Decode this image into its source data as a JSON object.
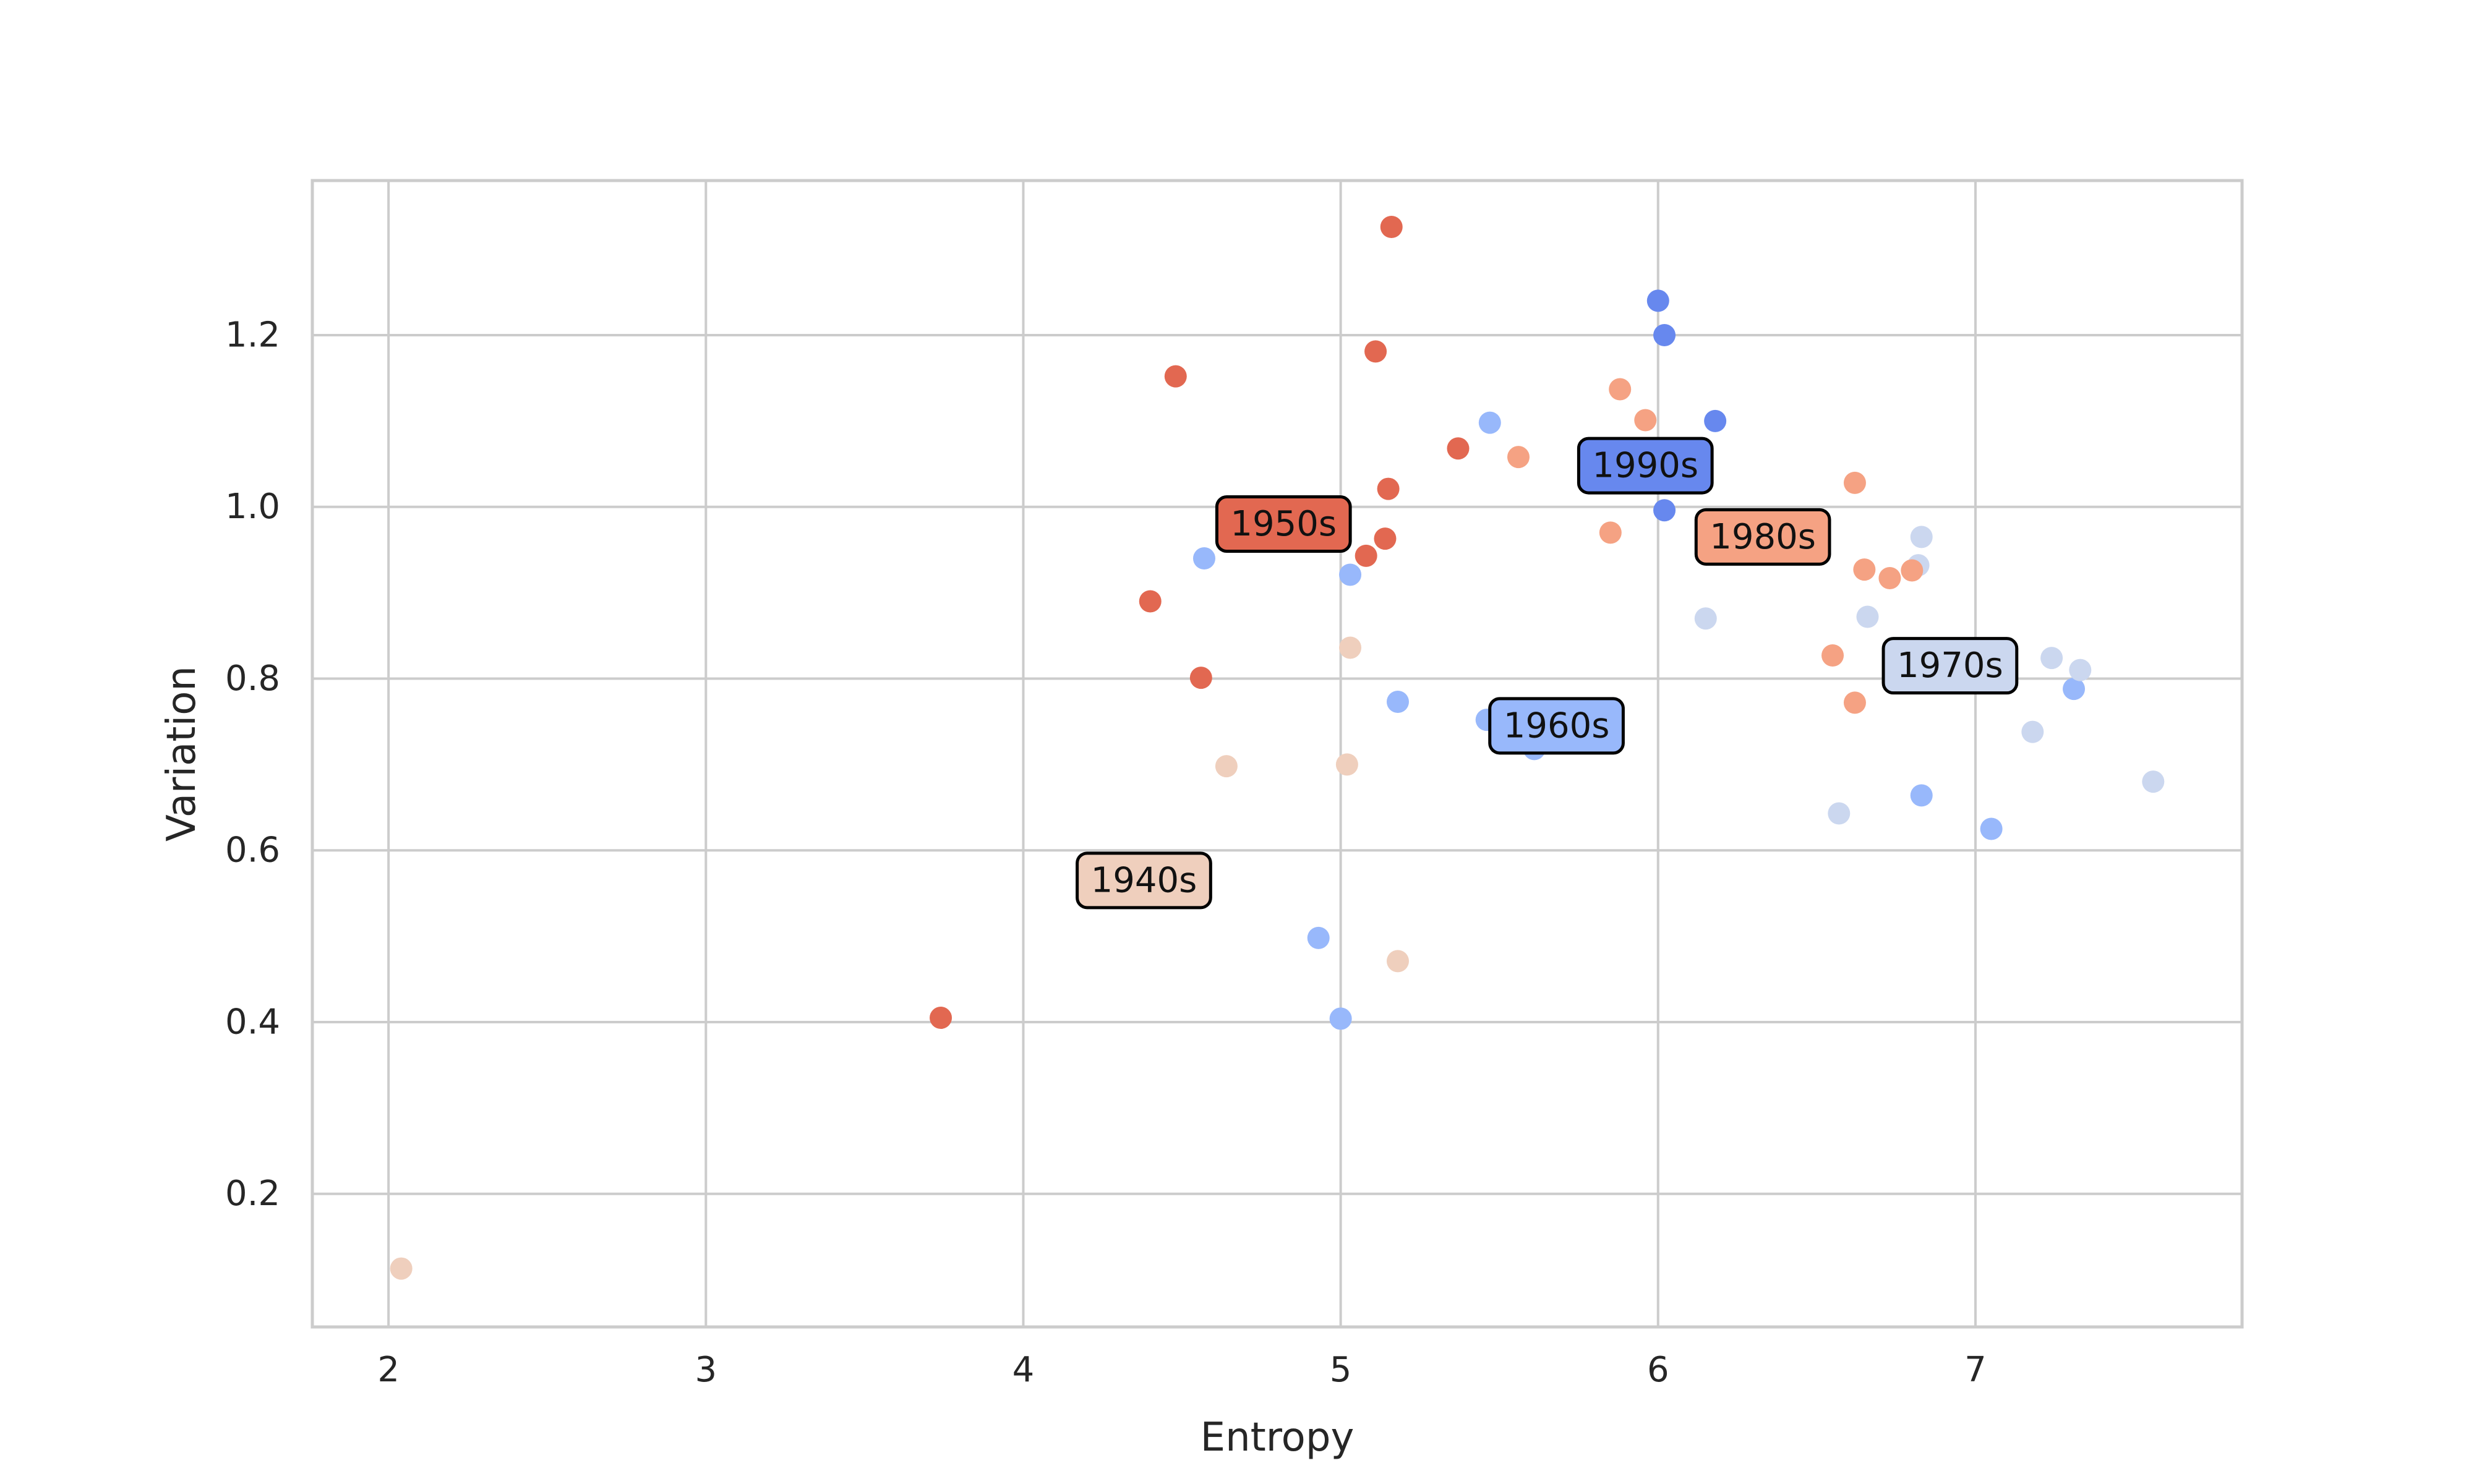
{
  "chart_data": {
    "type": "scatter",
    "title": "",
    "xlabel": "Entropy",
    "ylabel": "Variation",
    "xlim": [
      1.76,
      7.84
    ],
    "ylim": [
      0.045,
      1.38
    ],
    "xticks": [
      2,
      3,
      4,
      5,
      6,
      7
    ],
    "yticks": [
      0.2,
      0.4,
      0.6,
      0.8,
      1.0,
      1.2
    ],
    "xtick_labels": [
      "2",
      "3",
      "4",
      "5",
      "6",
      "7"
    ],
    "ytick_labels": [
      "0.2",
      "0.4",
      "0.6",
      "0.8",
      "1.0",
      "1.2"
    ],
    "grid": true,
    "series": [
      {
        "key": "1940s",
        "color": "#efcfbd",
        "points": [
          [
            2.04,
            0.113
          ],
          [
            4.64,
            0.698
          ],
          [
            5.02,
            0.7
          ],
          [
            5.03,
            0.836
          ],
          [
            5.18,
            0.471
          ]
        ],
        "label": {
          "text": "1940s",
          "x": 4.38,
          "y": 0.565
        }
      },
      {
        "key": "1950s",
        "color": "#e26851",
        "points": [
          [
            3.74,
            0.405
          ],
          [
            4.4,
            0.89
          ],
          [
            4.48,
            1.152
          ],
          [
            4.56,
            0.801
          ],
          [
            5.08,
            0.943
          ],
          [
            5.11,
            1.181
          ],
          [
            5.14,
            0.963
          ],
          [
            5.15,
            1.021
          ],
          [
            5.16,
            1.326
          ],
          [
            5.37,
            1.068
          ]
        ],
        "label": {
          "text": "1950s",
          "x": 4.82,
          "y": 0.98
        }
      },
      {
        "key": "1960s",
        "color": "#98b8fb",
        "points": [
          [
            4.57,
            0.94
          ],
          [
            4.93,
            0.498
          ],
          [
            5.0,
            0.404
          ],
          [
            5.03,
            0.921
          ],
          [
            5.18,
            0.773
          ],
          [
            5.46,
            0.752
          ],
          [
            5.47,
            1.098
          ],
          [
            5.61,
            0.718
          ],
          [
            6.83,
            0.664
          ],
          [
            7.05,
            0.625
          ],
          [
            7.31,
            0.788
          ]
        ],
        "label": {
          "text": "1960s",
          "x": 5.68,
          "y": 0.745
        }
      },
      {
        "key": "1970s",
        "color": "#cbd7ef",
        "points": [
          [
            6.15,
            0.87
          ],
          [
            6.57,
            0.643
          ],
          [
            6.66,
            0.872
          ],
          [
            6.82,
            0.932
          ],
          [
            6.83,
            0.965
          ],
          [
            7.18,
            0.738
          ],
          [
            7.24,
            0.824
          ],
          [
            7.33,
            0.81
          ],
          [
            7.56,
            0.68
          ]
        ],
        "label": {
          "text": "1970s",
          "x": 6.92,
          "y": 0.815
        }
      },
      {
        "key": "1980s",
        "color": "#f5a283",
        "points": [
          [
            5.56,
            1.058
          ],
          [
            5.85,
            0.97
          ],
          [
            5.88,
            1.137
          ],
          [
            5.96,
            1.101
          ],
          [
            6.55,
            0.827
          ],
          [
            6.62,
            0.772
          ],
          [
            6.62,
            1.028
          ],
          [
            6.65,
            0.927
          ],
          [
            6.73,
            0.917
          ],
          [
            6.8,
            0.926
          ]
        ],
        "label": {
          "text": "1980s",
          "x": 6.33,
          "y": 0.965
        }
      },
      {
        "key": "1990s",
        "color": "#6788ee",
        "points": [
          [
            6.0,
            1.24
          ],
          [
            6.02,
            1.2
          ],
          [
            6.02,
            0.996
          ],
          [
            6.18,
            1.1
          ]
        ],
        "label": {
          "text": "1990s",
          "x": 5.96,
          "y": 1.048
        }
      }
    ]
  }
}
